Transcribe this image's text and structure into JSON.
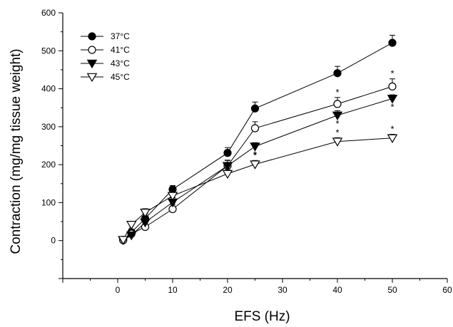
{
  "chart_data": {
    "type": "line",
    "title": "",
    "xlabel": "EFS (Hz)",
    "ylabel": "Contraction (mg/mg tissue weight)",
    "xlim": [
      -10,
      60
    ],
    "ylim": [
      -100,
      600
    ],
    "xticks": [
      0,
      10,
      20,
      30,
      40,
      50,
      60
    ],
    "yticks": [
      0,
      100,
      200,
      300,
      400,
      500,
      600
    ],
    "grid": false,
    "legend_position": "top-left",
    "series": [
      {
        "name": "37°C",
        "marker": "filled-circle",
        "points": [
          {
            "x": 1,
            "y": 2,
            "err": 6,
            "sig": false
          },
          {
            "x": 2.5,
            "y": 22,
            "err": 7,
            "sig": false
          },
          {
            "x": 5,
            "y": 58,
            "err": 12,
            "sig": false
          },
          {
            "x": 10,
            "y": 135,
            "err": 10,
            "sig": false
          },
          {
            "x": 20,
            "y": 231,
            "err": 14,
            "sig": false
          },
          {
            "x": 25,
            "y": 348,
            "err": 17,
            "sig": false
          },
          {
            "x": 40,
            "y": 441,
            "err": 18,
            "sig": false
          },
          {
            "x": 50,
            "y": 521,
            "err": 20,
            "sig": false
          }
        ]
      },
      {
        "name": "41°C",
        "marker": "open-circle",
        "points": [
          {
            "x": 1,
            "y": 1,
            "err": 6,
            "sig": false
          },
          {
            "x": 2.5,
            "y": 18,
            "err": 7,
            "sig": false
          },
          {
            "x": 5,
            "y": 36,
            "err": 10,
            "sig": false
          },
          {
            "x": 10,
            "y": 83,
            "err": 12,
            "sig": false
          },
          {
            "x": 20,
            "y": 197,
            "err": 15,
            "sig": false
          },
          {
            "x": 25,
            "y": 296,
            "err": 17,
            "sig": false
          },
          {
            "x": 40,
            "y": 360,
            "err": 17,
            "sig": true
          },
          {
            "x": 50,
            "y": 406,
            "err": 20,
            "sig": true
          }
        ]
      },
      {
        "name": "43°C",
        "marker": "filled-triangle-down",
        "points": [
          {
            "x": 1,
            "y": 1,
            "err": 5,
            "sig": false
          },
          {
            "x": 2.5,
            "y": 14,
            "err": 6,
            "sig": false
          },
          {
            "x": 5,
            "y": 48,
            "err": 10,
            "sig": false
          },
          {
            "x": 10,
            "y": 101,
            "err": 12,
            "sig": false
          },
          {
            "x": 20,
            "y": 197,
            "err": 14,
            "sig": false
          },
          {
            "x": 25,
            "y": 248,
            "err": 10,
            "sig": true
          },
          {
            "x": 40,
            "y": 330,
            "err": 12,
            "sig": true
          },
          {
            "x": 50,
            "y": 374,
            "err": 10,
            "sig": true
          }
        ]
      },
      {
        "name": "45°C",
        "marker": "open-triangle-down",
        "points": [
          {
            "x": 1,
            "y": 2,
            "err": 5,
            "sig": false
          },
          {
            "x": 2.5,
            "y": 42,
            "err": 7,
            "sig": false
          },
          {
            "x": 5,
            "y": 74,
            "err": 10,
            "sig": false
          },
          {
            "x": 10,
            "y": 118,
            "err": 12,
            "sig": false
          },
          {
            "x": 20,
            "y": 176,
            "err": 10,
            "sig": false
          },
          {
            "x": 25,
            "y": 201,
            "err": 10,
            "sig": true
          },
          {
            "x": 40,
            "y": 261,
            "err": 10,
            "sig": true
          },
          {
            "x": 50,
            "y": 270,
            "err": 10,
            "sig": true
          }
        ]
      }
    ],
    "significance_symbol": "*"
  }
}
